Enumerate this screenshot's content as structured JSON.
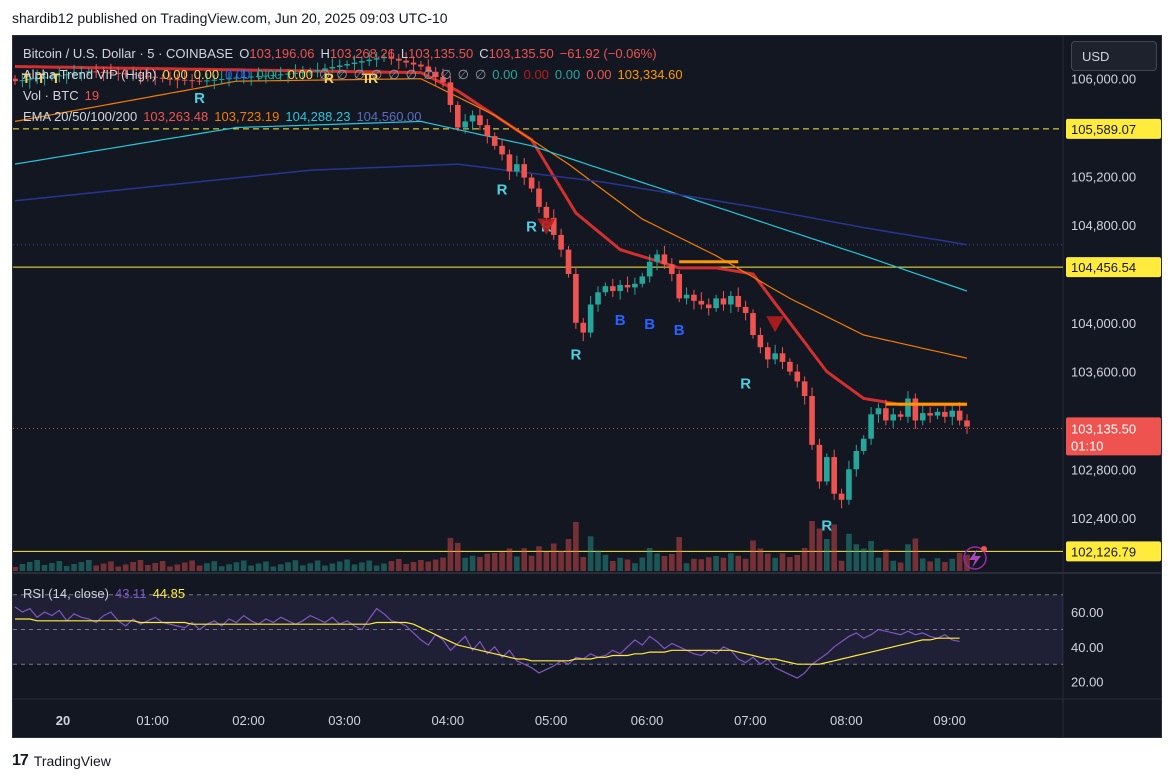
{
  "header": {
    "text": "shardib12 published on TradingView.com, Jun 20, 2025 09:03 UTC-10"
  },
  "footer": {
    "logo": "17",
    "brand": "TradingView"
  },
  "currency_button": "USD",
  "legend": {
    "symbol": "Bitcoin / U.S. Dollar · 5 · COINBASE",
    "o_label": "O",
    "o_value": "103,196.06",
    "h_label": "H",
    "h_value": "103,268.26",
    "l_label": "L",
    "l_value": "103,135.50",
    "c_label": "C",
    "c_value": "103,135.50",
    "change": "−61.92 (−0.06%)",
    "alpha_label": "Alpha Trend VIP (High)",
    "alpha_values": [
      "0.00",
      "0.00",
      "0.00",
      "0.00",
      "0.00",
      "∅",
      "∅",
      "∅",
      "∅",
      "∅",
      "∅",
      "∅",
      "∅",
      "∅",
      "∅",
      "0.00",
      "0.00",
      "0.00",
      "0.00",
      "103,334.60"
    ],
    "vol_label": "Vol · BTC",
    "vol_value": "19",
    "ema_label": "EMA 20/50/100/200",
    "ema_values": [
      "103,263.48",
      "103,723.19",
      "104,288.23",
      "104,560.00"
    ]
  },
  "rsi_legend": {
    "label": "RSI (14, close)",
    "rsi": "43.11",
    "ma": "44.85"
  },
  "colors": {
    "up": "#26a69a",
    "down": "#ef5350",
    "ema20": "#d32f2f",
    "ema50": "#f57c00",
    "ema100": "#26c6da",
    "ema200": "#283593",
    "rsi": "#7e57c2",
    "rsi_ma": "#ffeb3b",
    "bg": "#131722"
  },
  "chart_data": {
    "type": "candlestick",
    "symbol": "Bitcoin / U.S. Dollar · 5 · COINBASE",
    "x_ticks": [
      "20",
      "01:00",
      "02:00",
      "03:00",
      "04:00",
      "05:00",
      "06:00",
      "07:00",
      "08:00",
      "09:00"
    ],
    "y_ticks": [
      "106,000.00",
      "105,200.00",
      "104,800.00",
      "104,000.00",
      "103,600.00",
      "102,800.00",
      "102,400.00"
    ],
    "ylim": [
      101950,
      106350
    ],
    "price_lines": [
      {
        "value": 105589.07,
        "label": "105,589.07",
        "style": "dashed"
      },
      {
        "value": 104456.54,
        "label": "104,456.54",
        "style": "solid"
      },
      {
        "value": 102126.79,
        "label": "102,126.79",
        "style": "solid"
      }
    ],
    "current_price": {
      "value": 103135.5,
      "label": "103,135.50",
      "countdown": "01:10"
    },
    "close_path": [
      [
        0,
        105980
      ],
      [
        5,
        106020
      ],
      [
        10,
        106060
      ],
      [
        15,
        106040
      ],
      [
        20,
        106000
      ],
      [
        25,
        105980
      ],
      [
        30,
        106010
      ],
      [
        35,
        106030
      ],
      [
        40,
        106060
      ],
      [
        45,
        106120
      ],
      [
        50,
        106180
      ],
      [
        55,
        106100
      ],
      [
        58,
        105970
      ],
      [
        60,
        105600
      ],
      [
        62,
        105700
      ],
      [
        63,
        105620
      ],
      [
        64,
        105530
      ],
      [
        65,
        105450
      ],
      [
        66,
        105380
      ],
      [
        67,
        105240
      ],
      [
        68,
        105300
      ],
      [
        69,
        105190
      ],
      [
        70,
        105100
      ],
      [
        71,
        104950
      ],
      [
        72,
        104860
      ],
      [
        73,
        104720
      ],
      [
        74,
        104600
      ],
      [
        75,
        104400
      ],
      [
        76,
        104000
      ],
      [
        77,
        103920
      ],
      [
        78,
        104150
      ],
      [
        79,
        104250
      ],
      [
        80,
        104300
      ],
      [
        81,
        104260
      ],
      [
        82,
        104310
      ],
      [
        83,
        104290
      ],
      [
        84,
        104320
      ],
      [
        85,
        104380
      ],
      [
        86,
        104500
      ],
      [
        87,
        104560
      ],
      [
        88,
        104480
      ],
      [
        89,
        104400
      ],
      [
        90,
        104200
      ],
      [
        91,
        104230
      ],
      [
        92,
        104180
      ],
      [
        93,
        104150
      ],
      [
        94,
        104120
      ],
      [
        95,
        104200
      ],
      [
        96,
        104150
      ],
      [
        97,
        104220
      ],
      [
        98,
        104130
      ],
      [
        99,
        104080
      ],
      [
        100,
        103900
      ],
      [
        101,
        103800
      ],
      [
        102,
        103700
      ],
      [
        103,
        103750
      ],
      [
        104,
        103680
      ],
      [
        105,
        103600
      ],
      [
        106,
        103520
      ],
      [
        107,
        103400
      ],
      [
        108,
        103000
      ],
      [
        109,
        102700
      ],
      [
        110,
        102900
      ],
      [
        111,
        102600
      ],
      [
        112,
        102550
      ],
      [
        113,
        102800
      ],
      [
        114,
        102950
      ],
      [
        115,
        103050
      ],
      [
        116,
        103250
      ],
      [
        117,
        103300
      ],
      [
        118,
        103200
      ],
      [
        119,
        103250
      ],
      [
        120,
        103230
      ],
      [
        121,
        103380
      ],
      [
        122,
        103200
      ],
      [
        123,
        103260
      ],
      [
        124,
        103240
      ],
      [
        125,
        103270
      ],
      [
        126,
        103230
      ],
      [
        127,
        103280
      ],
      [
        128,
        103200
      ],
      [
        129,
        103150
      ]
    ],
    "ema": [
      {
        "name": "EMA 20",
        "points": [
          [
            0,
            106100
          ],
          [
            55,
            106050
          ],
          [
            60,
            105900
          ],
          [
            70,
            105500
          ],
          [
            76,
            104900
          ],
          [
            82,
            104600
          ],
          [
            90,
            104450
          ],
          [
            95,
            104450
          ],
          [
            100,
            104400
          ],
          [
            105,
            104000
          ],
          [
            110,
            103600
          ],
          [
            115,
            103380
          ],
          [
            120,
            103330
          ],
          [
            129,
            103330
          ]
        ]
      },
      {
        "name": "EMA 50",
        "points": [
          [
            0,
            105650
          ],
          [
            30,
            105980
          ],
          [
            55,
            106000
          ],
          [
            65,
            105700
          ],
          [
            75,
            105300
          ],
          [
            85,
            104850
          ],
          [
            95,
            104550
          ],
          [
            105,
            104200
          ],
          [
            115,
            103900
          ],
          [
            129,
            103710
          ]
        ]
      },
      {
        "name": "EMA 100",
        "points": [
          [
            0,
            105300
          ],
          [
            30,
            105600
          ],
          [
            55,
            105650
          ],
          [
            70,
            105450
          ],
          [
            85,
            105150
          ],
          [
            100,
            104850
          ],
          [
            115,
            104550
          ],
          [
            129,
            104260
          ]
        ]
      },
      {
        "name": "EMA 200",
        "points": [
          [
            0,
            105000
          ],
          [
            40,
            105250
          ],
          [
            60,
            105300
          ],
          [
            80,
            105150
          ],
          [
            100,
            104950
          ],
          [
            115,
            104780
          ],
          [
            129,
            104640
          ]
        ]
      }
    ],
    "signals": [
      {
        "label": "R",
        "i": 25,
        "price": 105800
      },
      {
        "label": "R",
        "i": 66,
        "price": 105050
      },
      {
        "label": "R",
        "i": 70,
        "price": 104750
      },
      {
        "label": "R",
        "i": 72,
        "price": 104750
      },
      {
        "label": "R",
        "i": 76,
        "price": 103700
      },
      {
        "label": "B",
        "i": 82,
        "price": 103980
      },
      {
        "label": "B",
        "i": 86,
        "price": 103950
      },
      {
        "label": "B",
        "i": 90,
        "price": 103900
      },
      {
        "label": "R",
        "i": 99,
        "price": 103460
      },
      {
        "label": "R",
        "i": 110,
        "price": 102300
      }
    ],
    "alpha_labels": [
      {
        "label": "T",
        "i": 1
      },
      {
        "label": "T",
        "i": 3
      },
      {
        "label": "T",
        "i": 5
      },
      {
        "label": "R",
        "i": 42
      },
      {
        "label": "T",
        "i": 47
      },
      {
        "label": "R",
        "i": 48
      }
    ],
    "rsi": {
      "ylim": [
        10,
        75
      ],
      "y_ticks": [
        "60.00",
        "40.00",
        "20.00"
      ],
      "levels": [
        70,
        50,
        30
      ],
      "values": [
        63,
        60,
        62,
        57,
        60,
        58,
        61,
        55,
        59,
        57,
        56,
        54,
        58,
        60,
        55,
        52,
        56,
        53,
        55,
        57,
        54,
        53,
        52,
        51,
        54,
        50,
        53,
        55,
        52,
        56,
        54,
        58,
        55,
        53,
        56,
        54,
        57,
        55,
        53,
        55,
        58,
        56,
        54,
        57,
        53,
        55,
        52,
        50,
        56,
        62,
        59,
        55,
        54,
        52,
        48,
        44,
        41,
        47,
        44,
        38,
        42,
        46,
        38,
        43,
        36,
        40,
        34,
        38,
        32,
        30,
        28,
        25,
        27,
        29,
        32,
        30,
        34,
        33,
        36,
        34,
        35,
        38,
        36,
        40,
        44,
        41,
        46,
        43,
        39,
        42,
        40,
        38,
        36,
        35,
        38,
        36,
        40,
        38,
        33,
        31,
        34,
        30,
        33,
        28,
        26,
        24,
        22,
        25,
        30,
        33,
        36,
        40,
        43,
        46,
        48,
        45,
        47,
        50,
        49,
        48,
        47,
        49,
        47,
        48,
        46,
        45,
        47,
        44,
        43
      ],
      "ma": [
        56,
        56,
        56,
        55,
        55,
        55,
        55,
        55,
        55,
        55,
        55,
        55,
        55,
        55,
        55,
        55,
        55,
        54,
        54,
        54,
        54,
        54,
        54,
        54,
        53,
        53,
        53,
        53,
        53,
        53,
        53,
        53,
        53,
        53,
        53,
        53,
        53,
        53,
        53,
        53,
        53,
        53,
        53,
        53,
        53,
        53,
        53,
        53,
        53,
        54,
        54,
        54,
        54,
        54,
        53,
        51,
        49,
        47,
        45,
        43,
        41,
        40,
        39,
        38,
        37,
        36,
        35,
        34,
        33,
        33,
        32,
        32,
        32,
        32,
        32,
        32,
        33,
        33,
        33,
        34,
        34,
        35,
        35,
        35,
        36,
        36,
        37,
        37,
        37,
        38,
        38,
        38,
        38,
        38,
        38,
        38,
        38,
        38,
        37,
        36,
        35,
        34,
        33,
        33,
        32,
        31,
        30,
        30,
        30,
        30,
        31,
        32,
        33,
        34,
        35,
        36,
        37,
        38,
        39,
        40,
        41,
        42,
        43,
        44,
        44,
        45,
        45,
        45,
        45
      ]
    }
  }
}
